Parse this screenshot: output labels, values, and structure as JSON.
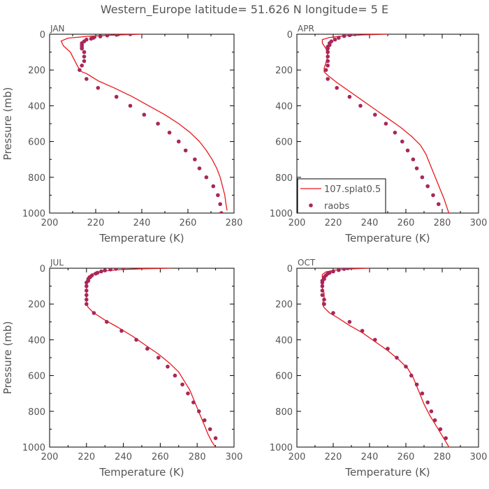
{
  "figure": {
    "title": "Western_Europe  latitude= 51.626 N longitude= 5 E"
  },
  "colors": {
    "model_line": "#e8191b",
    "obs_marker": "#a8275a"
  },
  "chart_data": [
    {
      "type": "line",
      "panel": "JAN",
      "xlabel": "Temperature (K)",
      "ylabel": "Pressure (mb)",
      "xlim": [
        200,
        280
      ],
      "ylim": [
        1000,
        0
      ],
      "x_ticks": [
        200,
        220,
        240,
        260,
        280
      ],
      "y_ticks": [
        0,
        200,
        400,
        600,
        800,
        1000
      ],
      "legend": null,
      "series": [
        {
          "name": "107.splat0.5",
          "kind": "line",
          "points": [
            [
              240,
              0
            ],
            [
              227,
              5
            ],
            [
              216,
              12
            ],
            [
              208,
              22
            ],
            [
              205,
              38
            ],
            [
              206,
              65
            ],
            [
              209,
              100
            ],
            [
              211,
              150
            ],
            [
              213,
              200
            ],
            [
              214,
              210
            ],
            [
              216,
              220
            ],
            [
              221,
              260
            ],
            [
              228,
              300
            ],
            [
              236,
              350
            ],
            [
              243,
              400
            ],
            [
              250,
              450
            ],
            [
              256,
              500
            ],
            [
              261,
              550
            ],
            [
              265,
              600
            ],
            [
              268,
              650
            ],
            [
              270.5,
              700
            ],
            [
              272.5,
              750
            ],
            [
              274,
              800
            ],
            [
              275,
              850
            ],
            [
              276,
              900
            ],
            [
              276.5,
              950
            ],
            [
              277,
              985
            ]
          ]
        },
        {
          "name": "raobs",
          "kind": "scatter",
          "points": [
            [
              235,
              0
            ],
            [
              229,
              3
            ],
            [
              225,
              7
            ],
            [
              222,
              12
            ],
            [
              219,
              20
            ],
            [
              218,
              25
            ],
            [
              216,
              30
            ],
            [
              215,
              40
            ],
            [
              214,
              50
            ],
            [
              214,
              60
            ],
            [
              214,
              70
            ],
            [
              214,
              80
            ],
            [
              215,
              100
            ],
            [
              215,
              125
            ],
            [
              215,
              150
            ],
            [
              214,
              175
            ],
            [
              213,
              200
            ],
            [
              216,
              250
            ],
            [
              221,
              300
            ],
            [
              229,
              350
            ],
            [
              235,
              400
            ],
            [
              241,
              450
            ],
            [
              247,
              500
            ],
            [
              252,
              550
            ],
            [
              256,
              600
            ],
            [
              259,
              650
            ],
            [
              263,
              700
            ],
            [
              265,
              750
            ],
            [
              268,
              800
            ],
            [
              271,
              850
            ],
            [
              273,
              900
            ],
            [
              274,
              950
            ],
            [
              274.5,
              1000
            ]
          ]
        }
      ]
    },
    {
      "type": "line",
      "panel": "APR",
      "xlabel": "Temperature (K)",
      "ylabel": "",
      "xlim": [
        200,
        300
      ],
      "ylim": [
        1000,
        0
      ],
      "x_ticks": [
        200,
        220,
        240,
        260,
        280,
        300
      ],
      "y_ticks": [
        0,
        200,
        400,
        600,
        800,
        1000
      ],
      "legend": {
        "placement": "lower-left",
        "entries": [
          {
            "label": "107.splat0.5",
            "kind": "line"
          },
          {
            "label": "raobs",
            "kind": "marker"
          }
        ]
      },
      "series": [
        {
          "name": "107.splat0.5",
          "kind": "line",
          "points": [
            [
              250,
              0
            ],
            [
              236,
              4
            ],
            [
              226,
              9
            ],
            [
              218,
              18
            ],
            [
              214,
              30
            ],
            [
              214,
              50
            ],
            [
              216,
              80
            ],
            [
              217,
              120
            ],
            [
              216,
              160
            ],
            [
              215,
              190
            ],
            [
              215,
              210
            ],
            [
              217,
              230
            ],
            [
              222,
              270
            ],
            [
              229,
              320
            ],
            [
              236,
              370
            ],
            [
              243,
              420
            ],
            [
              250,
              470
            ],
            [
              257,
              520
            ],
            [
              263,
              570
            ],
            [
              268,
              620
            ],
            [
              271,
              670
            ],
            [
              273,
              720
            ],
            [
              275,
              770
            ],
            [
              277,
              820
            ],
            [
              279,
              870
            ],
            [
              281,
              920
            ],
            [
              283,
              980
            ],
            [
              284,
              1010
            ]
          ]
        },
        {
          "name": "raobs",
          "kind": "scatter",
          "points": [
            [
              232,
              0
            ],
            [
              229,
              5
            ],
            [
              226,
              10
            ],
            [
              223,
              20
            ],
            [
              221,
              30
            ],
            [
              219,
              40
            ],
            [
              218,
              50
            ],
            [
              218,
              60
            ],
            [
              217,
              70
            ],
            [
              217,
              80
            ],
            [
              217,
              100
            ],
            [
              217,
              125
            ],
            [
              217,
              150
            ],
            [
              217,
              175
            ],
            [
              216,
              200
            ],
            [
              217,
              250
            ],
            [
              222,
              300
            ],
            [
              229,
              350
            ],
            [
              235,
              400
            ],
            [
              243,
              450
            ],
            [
              249,
              500
            ],
            [
              254,
              550
            ],
            [
              258,
              600
            ],
            [
              261,
              650
            ],
            [
              264,
              700
            ],
            [
              266,
              750
            ],
            [
              269,
              800
            ],
            [
              272,
              850
            ],
            [
              275,
              900
            ],
            [
              278,
              950
            ]
          ]
        }
      ]
    },
    {
      "type": "line",
      "panel": "JUL",
      "xlabel": "Temperature (K)",
      "ylabel": "Pressure (mb)",
      "xlim": [
        200,
        300
      ],
      "ylim": [
        1000,
        0
      ],
      "x_ticks": [
        200,
        220,
        240,
        260,
        280,
        300
      ],
      "y_ticks": [
        0,
        200,
        400,
        600,
        800,
        1000
      ],
      "legend": null,
      "series": [
        {
          "name": "107.splat0.5",
          "kind": "line",
          "points": [
            [
              266,
              0
            ],
            [
              250,
              3
            ],
            [
              238,
              8
            ],
            [
              229,
              16
            ],
            [
              224,
              28
            ],
            [
              221,
              45
            ],
            [
              220,
              70
            ],
            [
              220,
              100
            ],
            [
              220,
              150
            ],
            [
              220,
              200
            ],
            [
              221,
              220
            ],
            [
              224,
              250
            ],
            [
              230,
              290
            ],
            [
              237,
              330
            ],
            [
              245,
              380
            ],
            [
              252,
              430
            ],
            [
              259,
              480
            ],
            [
              265,
              530
            ],
            [
              270,
              580
            ],
            [
              273,
              630
            ],
            [
              276,
              680
            ],
            [
              278,
              730
            ],
            [
              280,
              780
            ],
            [
              282,
              830
            ],
            [
              284,
              880
            ],
            [
              286,
              930
            ],
            [
              288,
              970
            ],
            [
              290,
              1000
            ]
          ]
        },
        {
          "name": "raobs",
          "kind": "scatter",
          "points": [
            [
              240,
              0
            ],
            [
              236,
              3
            ],
            [
              233,
              7
            ],
            [
              230,
              12
            ],
            [
              228,
              18
            ],
            [
              226,
              25
            ],
            [
              225,
              30
            ],
            [
              223,
              40
            ],
            [
              222,
              50
            ],
            [
              221,
              60
            ],
            [
              221,
              70
            ],
            [
              220,
              80
            ],
            [
              220,
              100
            ],
            [
              220,
              125
            ],
            [
              220,
              150
            ],
            [
              220,
              175
            ],
            [
              220,
              200
            ],
            [
              224,
              250
            ],
            [
              231,
              300
            ],
            [
              239,
              350
            ],
            [
              247,
              400
            ],
            [
              253,
              450
            ],
            [
              259,
              500
            ],
            [
              264,
              550
            ],
            [
              268,
              600
            ],
            [
              272,
              650
            ],
            [
              275,
              700
            ],
            [
              278,
              750
            ],
            [
              281,
              800
            ],
            [
              284,
              850
            ],
            [
              287,
              900
            ],
            [
              290,
              950
            ]
          ]
        }
      ]
    },
    {
      "type": "line",
      "panel": "OCT",
      "xlabel": "Temperature (K)",
      "ylabel": "",
      "xlim": [
        200,
        300
      ],
      "ylim": [
        1000,
        0
      ],
      "x_ticks": [
        200,
        220,
        240,
        260,
        280,
        300
      ],
      "y_ticks": [
        0,
        200,
        400,
        600,
        800,
        1000
      ],
      "legend": null,
      "series": [
        {
          "name": "107.splat0.5",
          "kind": "line",
          "points": [
            [
              240,
              0
            ],
            [
              229,
              4
            ],
            [
              221,
              10
            ],
            [
              216,
              20
            ],
            [
              214,
              35
            ],
            [
              214,
              55
            ],
            [
              214,
              80
            ],
            [
              214,
              110
            ],
            [
              215,
              140
            ],
            [
              215,
              170
            ],
            [
              214,
              200
            ],
            [
              215,
              220
            ],
            [
              218,
              250
            ],
            [
              223,
              280
            ],
            [
              229,
              320
            ],
            [
              236,
              360
            ],
            [
              243,
              410
            ],
            [
              250,
              460
            ],
            [
              256,
              510
            ],
            [
              261,
              560
            ],
            [
              264,
              610
            ],
            [
              266,
              660
            ],
            [
              268,
              710
            ],
            [
              270,
              760
            ],
            [
              273,
              820
            ],
            [
              276,
              870
            ],
            [
              279,
              920
            ],
            [
              282,
              970
            ],
            [
              284,
              1005
            ]
          ]
        },
        {
          "name": "raobs",
          "kind": "scatter",
          "points": [
            [
              228,
              0
            ],
            [
              226,
              4
            ],
            [
              223,
              10
            ],
            [
              220,
              18
            ],
            [
              218,
              25
            ],
            [
              217,
              30
            ],
            [
              216,
              40
            ],
            [
              215,
              50
            ],
            [
              215,
              60
            ],
            [
              214,
              70
            ],
            [
              214,
              80
            ],
            [
              214,
              100
            ],
            [
              214,
              125
            ],
            [
              214,
              150
            ],
            [
              215,
              175
            ],
            [
              215,
              200
            ],
            [
              220,
              250
            ],
            [
              229,
              300
            ],
            [
              236,
              350
            ],
            [
              243,
              400
            ],
            [
              250,
              450
            ],
            [
              255,
              500
            ],
            [
              260,
              550
            ],
            [
              263,
              600
            ],
            [
              266,
              650
            ],
            [
              269,
              700
            ],
            [
              272,
              750
            ],
            [
              274,
              800
            ],
            [
              276,
              850
            ],
            [
              279,
              900
            ],
            [
              282,
              950
            ]
          ]
        }
      ]
    }
  ]
}
